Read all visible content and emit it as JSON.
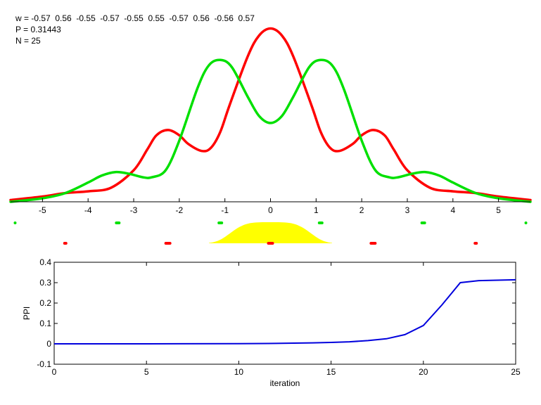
{
  "header": {
    "weights_text": "w = -0.57  0.56  -0.55  -0.57  -0.55  0.55  -0.57  0.56  -0.56  0.57",
    "probability_text": "P = 0.31443",
    "n_text": "N = 25"
  },
  "colors": {
    "red": "#ff0000",
    "green": "#00e000",
    "blue": "#0000dd",
    "yellow": "#ffff00",
    "axis": "#000000"
  },
  "chart_data": [
    {
      "type": "line",
      "title": "",
      "xlim": [
        -5.7,
        5.7
      ],
      "ylim": [
        0,
        1
      ],
      "x_ticks": [
        -5,
        -4,
        -3,
        -2,
        -1,
        0,
        1,
        2,
        3,
        4,
        5
      ],
      "grid": false,
      "series": [
        {
          "color": "red",
          "x": [
            -5.7,
            -5.0,
            -4.5,
            -4.0,
            -3.5,
            -3.0,
            -2.7,
            -2.5,
            -2.25,
            -2.0,
            -1.8,
            -1.5,
            -1.3,
            -1.1,
            -0.9,
            -0.5,
            -0.25,
            0,
            0.25,
            0.5,
            0.9,
            1.1,
            1.3,
            1.5,
            1.8,
            2.0,
            2.25,
            2.5,
            2.7,
            3.0,
            3.5,
            4.0,
            4.5,
            5.0,
            5.7
          ],
          "y": [
            0.01,
            0.03,
            0.05,
            0.06,
            0.08,
            0.18,
            0.3,
            0.38,
            0.41,
            0.38,
            0.33,
            0.29,
            0.31,
            0.4,
            0.55,
            0.83,
            0.95,
            0.99,
            0.95,
            0.83,
            0.55,
            0.4,
            0.31,
            0.29,
            0.33,
            0.38,
            0.41,
            0.38,
            0.3,
            0.18,
            0.08,
            0.06,
            0.05,
            0.03,
            0.01
          ]
        },
        {
          "color": "green",
          "x": [
            -5.7,
            -5.0,
            -4.5,
            -4.0,
            -3.7,
            -3.4,
            -3.1,
            -2.8,
            -2.6,
            -2.3,
            -2.0,
            -1.6,
            -1.35,
            -1.1,
            -0.85,
            -0.5,
            -0.25,
            0,
            0.25,
            0.5,
            0.85,
            1.1,
            1.35,
            1.6,
            2.0,
            2.3,
            2.6,
            2.8,
            3.1,
            3.4,
            3.7,
            4.0,
            4.5,
            5.0,
            5.7
          ],
          "y": [
            0.0,
            0.02,
            0.05,
            0.11,
            0.15,
            0.17,
            0.16,
            0.14,
            0.14,
            0.18,
            0.35,
            0.65,
            0.78,
            0.81,
            0.77,
            0.6,
            0.49,
            0.45,
            0.49,
            0.6,
            0.77,
            0.81,
            0.78,
            0.65,
            0.35,
            0.18,
            0.14,
            0.14,
            0.16,
            0.17,
            0.15,
            0.11,
            0.05,
            0.02,
            0.0
          ]
        }
      ],
      "markers": {
        "green_x": [
          -5.6,
          -3.35,
          -1.1,
          1.1,
          3.35,
          5.6
        ],
        "red_x": [
          -4.5,
          -2.25,
          0,
          2.25,
          4.5
        ]
      },
      "yellow_bump": {
        "center": 0,
        "halfwidth": 1.35,
        "height": 1.0
      }
    },
    {
      "type": "line",
      "title": "",
      "xlabel": "iteration",
      "ylabel": "PPI",
      "xlim": [
        0,
        25
      ],
      "ylim": [
        -0.1,
        0.4
      ],
      "x_ticks": [
        0,
        5,
        10,
        15,
        20,
        25
      ],
      "y_ticks": [
        -0.1,
        0,
        0.1,
        0.2,
        0.3,
        0.4
      ],
      "grid": false,
      "series": [
        {
          "color": "blue",
          "x": [
            0,
            5,
            10,
            12,
            14,
            15,
            16,
            17,
            18,
            19,
            20,
            21,
            22,
            23,
            24,
            25
          ],
          "y": [
            0.0,
            0.0,
            0.001,
            0.002,
            0.005,
            0.007,
            0.01,
            0.016,
            0.025,
            0.045,
            0.09,
            0.19,
            0.3,
            0.31,
            0.312,
            0.314
          ]
        }
      ]
    }
  ]
}
